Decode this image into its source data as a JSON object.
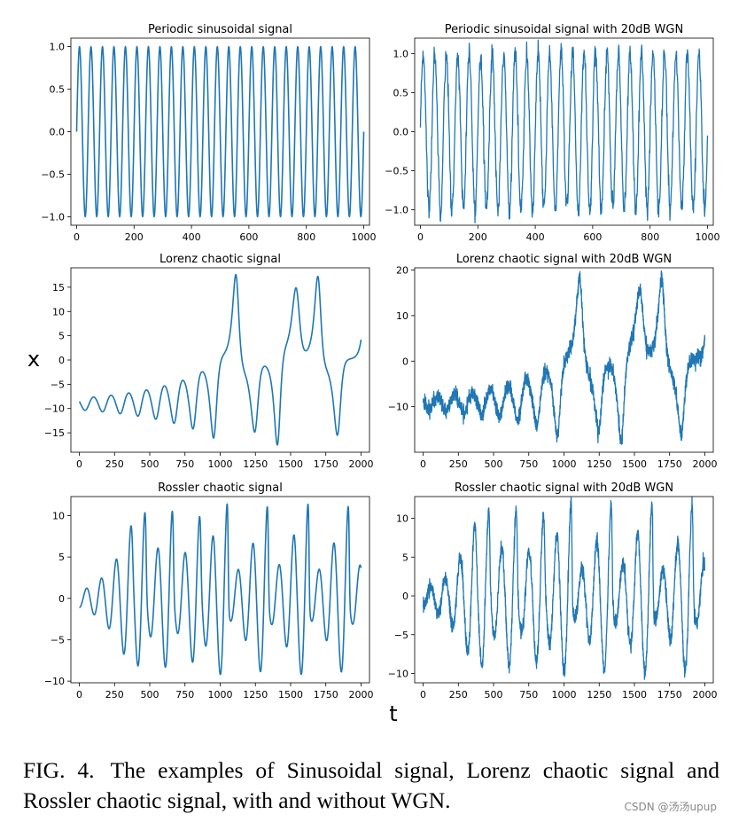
{
  "figure": {
    "xlabel": "t",
    "ylabel": "x",
    "line_color": "#1f77b4"
  },
  "caption": {
    "label": "FIG. 4.",
    "text": "The examples of Sinusoidal signal, Lorenz chaotic signal and Rossler chaotic signal, with and without WGN."
  },
  "watermark": "CSDN @汤汤upup",
  "chart_data": [
    {
      "type": "line",
      "title": "Periodic sinusoidal signal",
      "signal": "sine",
      "noise": false,
      "x_range": [
        0,
        1000
      ],
      "xlim": [
        -20,
        1020
      ],
      "ylim": [
        -1.1,
        1.1
      ],
      "xticks": [
        0,
        200,
        400,
        600,
        800,
        1000
      ],
      "yticks": [
        -1.0,
        -0.5,
        0.0,
        0.5,
        1.0
      ],
      "ytick_labels": [
        "−1.0",
        "−0.5",
        "0.0",
        "0.5",
        "1.0"
      ],
      "period": 40
    },
    {
      "type": "line",
      "title": "Periodic sinusoidal signal with 20dB WGN",
      "signal": "sine",
      "noise": true,
      "x_range": [
        0,
        1000
      ],
      "xlim": [
        -20,
        1020
      ],
      "ylim": [
        -1.2,
        1.2
      ],
      "xticks": [
        0,
        200,
        400,
        600,
        800,
        1000
      ],
      "yticks": [
        -1.0,
        -0.5,
        0.0,
        0.5,
        1.0
      ],
      "ytick_labels": [
        "−1.0",
        "−0.5",
        "0.0",
        "0.5",
        "1.0"
      ],
      "period": 40
    },
    {
      "type": "line",
      "title": "Lorenz chaotic signal",
      "signal": "lorenz",
      "noise": false,
      "x_range": [
        0,
        2000
      ],
      "xlim": [
        -60,
        2060
      ],
      "ylim": [
        -19,
        19
      ],
      "xticks": [
        0,
        250,
        500,
        750,
        1000,
        1250,
        1500,
        1750,
        2000
      ],
      "yticks": [
        -15,
        -10,
        -5,
        0,
        5,
        10,
        15
      ],
      "ytick_labels": [
        "−15",
        "−10",
        "−5",
        "0",
        "5",
        "10",
        "15"
      ],
      "approx_range": [
        -17.5,
        17.6
      ]
    },
    {
      "type": "line",
      "title": "Lorenz chaotic signal with 20dB WGN",
      "signal": "lorenz",
      "noise": true,
      "x_range": [
        0,
        2000
      ],
      "xlim": [
        -60,
        2060
      ],
      "ylim": [
        -20,
        20.5
      ],
      "xticks": [
        0,
        250,
        500,
        750,
        1000,
        1250,
        1500,
        1750,
        2000
      ],
      "yticks": [
        -10,
        0,
        10,
        20
      ],
      "ytick_labels": [
        "−10",
        "0",
        "10",
        "20"
      ],
      "approx_range": [
        -18,
        18.5
      ]
    },
    {
      "type": "line",
      "title": "Rossler chaotic signal",
      "signal": "rossler",
      "noise": false,
      "x_range": [
        0,
        2000
      ],
      "xlim": [
        -60,
        2060
      ],
      "ylim": [
        -10.2,
        12.3
      ],
      "xticks": [
        0,
        250,
        500,
        750,
        1000,
        1250,
        1500,
        1750,
        2000
      ],
      "yticks": [
        -10,
        -5,
        0,
        5,
        10
      ],
      "ytick_labels": [
        "−10",
        "−5",
        "0",
        "5",
        "10"
      ],
      "approx_range": [
        -9.2,
        11.4
      ]
    },
    {
      "type": "line",
      "title": "Rossler chaotic signal with 20dB WGN",
      "signal": "rossler",
      "noise": true,
      "x_range": [
        0,
        2000
      ],
      "xlim": [
        -60,
        2060
      ],
      "ylim": [
        -11.2,
        12.8
      ],
      "xticks": [
        0,
        250,
        500,
        750,
        1000,
        1250,
        1500,
        1750,
        2000
      ],
      "yticks": [
        -10,
        -5,
        0,
        5,
        10
      ],
      "ytick_labels": [
        "−10",
        "−5",
        "0",
        "5",
        "10"
      ],
      "approx_range": [
        -10,
        12
      ]
    }
  ]
}
